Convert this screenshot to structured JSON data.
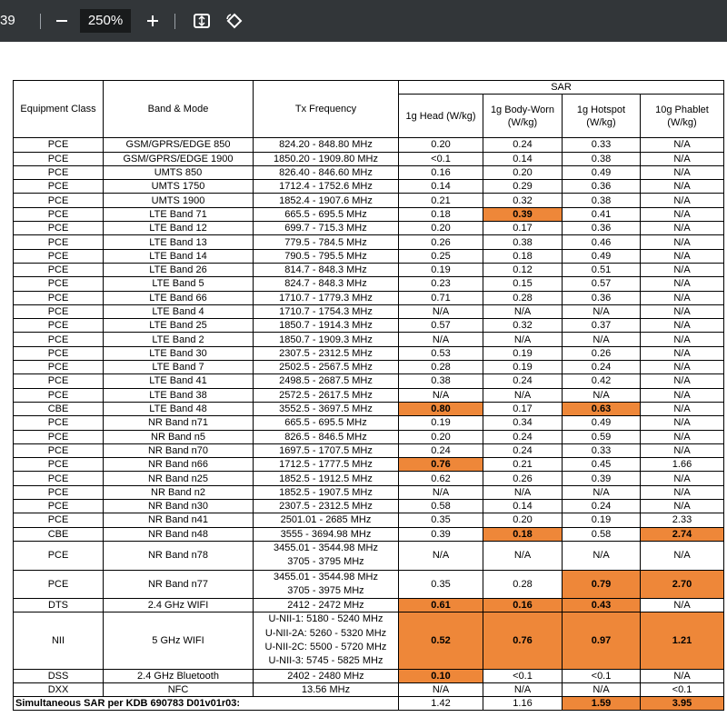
{
  "toolbar": {
    "page": "39",
    "zoom": "250%"
  },
  "table": {
    "header": {
      "equipment_class": "Equipment Class",
      "band_mode": "Band & Mode",
      "tx_frequency": "Tx Frequency",
      "sar": "SAR",
      "columns": [
        "1g Head (W/kg)",
        "1g Body-Worn (W/kg)",
        "1g Hotspot (W/kg)",
        "10g Phablet (W/kg)"
      ]
    },
    "rows": [
      [
        "PCE",
        "GSM/GPRS/EDGE 850",
        "824.20 - 848.80 MHz",
        "0.20",
        "0.24",
        "0.33",
        "N/A"
      ],
      [
        "PCE",
        "GSM/GPRS/EDGE 1900",
        "1850.20 - 1909.80 MHz",
        "<0.1",
        "0.14",
        "0.38",
        "N/A"
      ],
      [
        "PCE",
        "UMTS 850",
        "826.40 - 846.60 MHz",
        "0.16",
        "0.20",
        "0.49",
        "N/A"
      ],
      [
        "PCE",
        "UMTS 1750",
        "1712.4 - 1752.6 MHz",
        "0.14",
        "0.29",
        "0.36",
        "N/A"
      ],
      [
        "PCE",
        "UMTS 1900",
        "1852.4 - 1907.6 MHz",
        "0.21",
        "0.32",
        "0.38",
        "N/A"
      ],
      [
        "PCE",
        "LTE Band 71",
        "665.5 - 695.5 MHz",
        "0.18",
        "0.39",
        "0.41",
        "N/A"
      ],
      [
        "PCE",
        "LTE Band 12",
        "699.7 - 715.3 MHz",
        "0.20",
        "0.17",
        "0.36",
        "N/A"
      ],
      [
        "PCE",
        "LTE Band 13",
        "779.5 - 784.5 MHz",
        "0.26",
        "0.38",
        "0.46",
        "N/A"
      ],
      [
        "PCE",
        "LTE Band 14",
        "790.5 - 795.5 MHz",
        "0.25",
        "0.18",
        "0.49",
        "N/A"
      ],
      [
        "PCE",
        "LTE Band 26",
        "814.7 - 848.3 MHz",
        "0.19",
        "0.12",
        "0.51",
        "N/A"
      ],
      [
        "PCE",
        "LTE Band 5",
        "824.7 - 848.3 MHz",
        "0.23",
        "0.15",
        "0.57",
        "N/A"
      ],
      [
        "PCE",
        "LTE Band 66",
        "1710.7 - 1779.3 MHz",
        "0.71",
        "0.28",
        "0.36",
        "N/A"
      ],
      [
        "PCE",
        "LTE Band 4",
        "1710.7 - 1754.3 MHz",
        "N/A",
        "N/A",
        "N/A",
        "N/A"
      ],
      [
        "PCE",
        "LTE Band 25",
        "1850.7 - 1914.3 MHz",
        "0.57",
        "0.32",
        "0.37",
        "N/A"
      ],
      [
        "PCE",
        "LTE Band 2",
        "1850.7 - 1909.3 MHz",
        "N/A",
        "N/A",
        "N/A",
        "N/A"
      ],
      [
        "PCE",
        "LTE Band 30",
        "2307.5 - 2312.5 MHz",
        "0.53",
        "0.19",
        "0.26",
        "N/A"
      ],
      [
        "PCE",
        "LTE Band 7",
        "2502.5 - 2567.5 MHz",
        "0.28",
        "0.19",
        "0.24",
        "N/A"
      ],
      [
        "PCE",
        "LTE Band 41",
        "2498.5 - 2687.5 MHz",
        "0.38",
        "0.24",
        "0.42",
        "N/A"
      ],
      [
        "PCE",
        "LTE Band 38",
        "2572.5 - 2617.5 MHz",
        "N/A",
        "N/A",
        "N/A",
        "N/A"
      ],
      [
        "CBE",
        "LTE Band 48",
        "3552.5 - 3697.5 MHz",
        "0.80",
        "0.17",
        "0.63",
        "N/A"
      ],
      [
        "PCE",
        "NR Band n71",
        "665.5 - 695.5 MHz",
        "0.19",
        "0.34",
        "0.49",
        "N/A"
      ],
      [
        "PCE",
        "NR Band n5",
        "826.5 - 846.5 MHz",
        "0.20",
        "0.24",
        "0.59",
        "N/A"
      ],
      [
        "PCE",
        "NR Band n70",
        "1697.5 - 1707.5 MHz",
        "0.24",
        "0.24",
        "0.33",
        "N/A"
      ],
      [
        "PCE",
        "NR Band n66",
        "1712.5 - 1777.5 MHz",
        "0.76",
        "0.21",
        "0.45",
        "1.66"
      ],
      [
        "PCE",
        "NR Band n25",
        "1852.5 - 1912.5 MHz",
        "0.62",
        "0.26",
        "0.39",
        "N/A"
      ],
      [
        "PCE",
        "NR Band n2",
        "1852.5 - 1907.5 MHz",
        "N/A",
        "N/A",
        "N/A",
        "N/A"
      ],
      [
        "PCE",
        "NR Band n30",
        "2307.5 - 2312.5 MHz",
        "0.58",
        "0.14",
        "0.24",
        "N/A"
      ],
      [
        "PCE",
        "NR Band n41",
        "2501.01 - 2685 MHz",
        "0.35",
        "0.20",
        "0.19",
        "2.33"
      ],
      [
        "CBE",
        "NR Band n48",
        "3555 - 3694.98 MHz",
        "0.39",
        "0.18",
        "0.58",
        "2.74"
      ],
      [
        "PCE",
        "NR Band n78",
        [
          "3455.01 - 3544.98 MHz",
          "3705 - 3795 MHz"
        ],
        "N/A",
        "N/A",
        "N/A",
        "N/A"
      ],
      [
        "PCE",
        "NR Band n77",
        [
          "3455.01 - 3544.98 MHz",
          "3705 - 3975 MHz"
        ],
        "0.35",
        "0.28",
        "0.79",
        "2.70"
      ],
      [
        "DTS",
        "2.4 GHz WIFI",
        "2412 - 2472 MHz",
        "0.61",
        "0.16",
        "0.43",
        "N/A"
      ],
      [
        "NII",
        "5 GHz WIFI",
        [
          "U-NII-1: 5180 - 5240 MHz",
          "U-NII-2A: 5260 - 5320 MHz",
          "U-NII-2C: 5500 - 5720 MHz",
          "U-NII-3: 5745 - 5825 MHz"
        ],
        "0.52",
        "0.76",
        "0.97",
        "1.21"
      ],
      [
        "DSS",
        "2.4 GHz Bluetooth",
        "2402 - 2480 MHz",
        "0.10",
        "<0.1",
        "<0.1",
        "N/A"
      ],
      [
        "DXX",
        "NFC",
        "13.56 MHz",
        "N/A",
        "N/A",
        "N/A",
        "<0.1"
      ]
    ],
    "highlight": [
      [
        5,
        4
      ],
      [
        19,
        3
      ],
      [
        19,
        5
      ],
      [
        23,
        3
      ],
      [
        28,
        4
      ],
      [
        28,
        6
      ],
      [
        30,
        5
      ],
      [
        30,
        6
      ],
      [
        31,
        3
      ],
      [
        31,
        4
      ],
      [
        31,
        5
      ],
      [
        32,
        3
      ],
      [
        32,
        4
      ],
      [
        32,
        5
      ],
      [
        32,
        6
      ],
      [
        33,
        3
      ]
    ],
    "footer": {
      "label": "Simultaneous SAR per KDB 690783 D01v01r03:",
      "values": [
        "1.42",
        "1.16",
        "1.59",
        "3.95"
      ],
      "highlight": [
        2,
        3
      ]
    }
  }
}
